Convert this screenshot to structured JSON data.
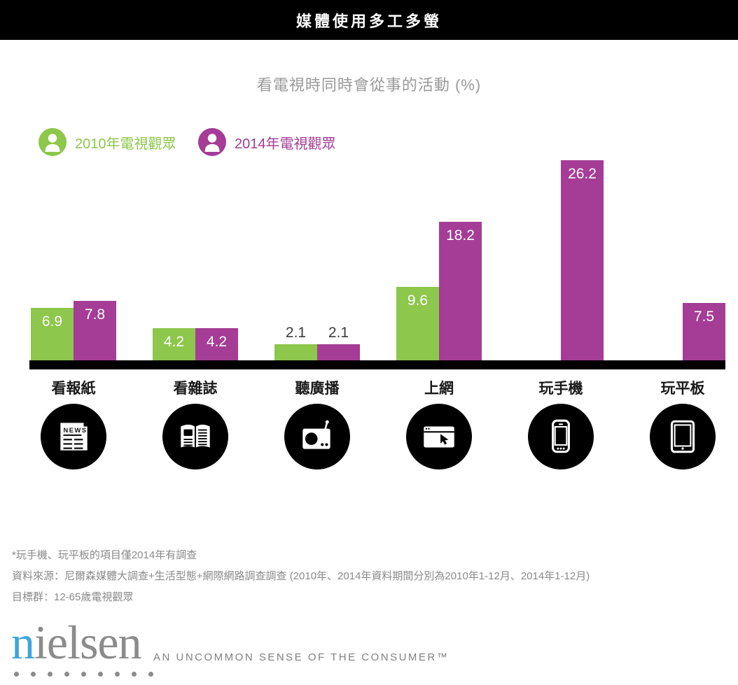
{
  "header": {
    "title": "媒體使用多工多螢"
  },
  "chart_data": {
    "type": "bar",
    "title": "看電視時同時會從事的活動 (%)",
    "categories": [
      "看報紙",
      "看雜誌",
      "聽廣播",
      "上網",
      "玩手機",
      "玩平板"
    ],
    "series": [
      {
        "name": "2010年電視觀眾",
        "color": "#8DC74B",
        "values": [
          6.9,
          4.2,
          2.1,
          9.6,
          null,
          null
        ]
      },
      {
        "name": "2014年電視觀眾",
        "color": "#A53C96",
        "values": [
          7.8,
          4.2,
          2.1,
          18.2,
          26.2,
          7.5
        ]
      }
    ],
    "ylim": [
      0,
      28
    ],
    "grid": false,
    "legend_position": "top-left",
    "value_labels": true,
    "icons": [
      "newspaper-icon",
      "magazine-icon",
      "radio-icon",
      "browser-icon",
      "smartphone-icon",
      "tablet-icon"
    ],
    "news_label": "NEWS"
  },
  "footnotes": {
    "line1": "*玩手機、玩平板的項目僅2014年有調查",
    "line2": "資料來源：尼爾森媒體大調查+生活型態+網際網路調查調查 (2010年、2014年資料期間分別為2010年1-12月、2014年1-12月)",
    "line3": "目標群：12-65歲電視觀眾"
  },
  "logo": {
    "brand_first_letter": "n",
    "brand_rest": "ielsen",
    "tagline": "AN UNCOMMON SENSE OF THE CONSUMER™",
    "blue": "#3FA5DC",
    "gray": "#8B8B8B",
    "dot_count": 9
  }
}
